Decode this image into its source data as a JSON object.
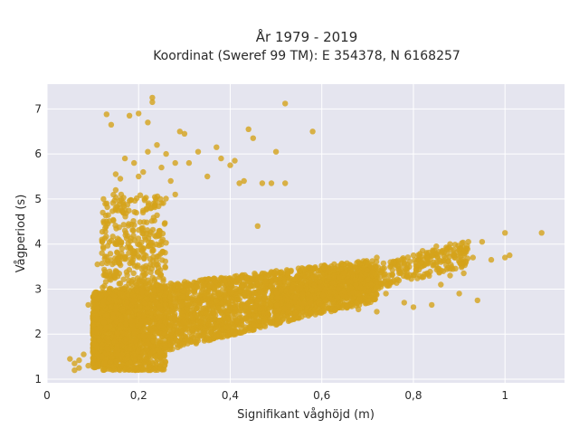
{
  "chart_data": {
    "type": "scatter",
    "title": "År 1979 - 2019",
    "subtitle": "Koordinat (Sweref 99 TM): E 354378, N 6168257",
    "xlabel": "Signifikant våghöjd (m)",
    "ylabel": "Vågperiod (s)",
    "xlim": [
      0,
      1.13
    ],
    "ylim": [
      0.92,
      7.55
    ],
    "x_ticks": [
      0,
      0.2,
      0.4,
      0.6,
      0.8,
      1
    ],
    "x_tick_labels": [
      "0",
      "0,2",
      "0,4",
      "0,6",
      "0,8",
      "1"
    ],
    "y_ticks": [
      1,
      2,
      3,
      4,
      5,
      6,
      7
    ],
    "y_tick_labels": [
      "1",
      "2",
      "3",
      "4",
      "5",
      "6",
      "7"
    ],
    "grid": true,
    "colors": {
      "marker": "#d4a21a",
      "plot_bg": "#e5e5ef",
      "grid": "#ffffff"
    },
    "series": [
      {
        "points": [
          [
            0.05,
            1.45
          ],
          [
            0.06,
            1.35
          ],
          [
            0.07,
            1.42
          ],
          [
            0.06,
            1.2
          ],
          [
            0.07,
            1.25
          ],
          [
            0.08,
            1.55
          ],
          [
            0.09,
            1.3
          ],
          [
            0.1,
            1.6
          ],
          [
            0.12,
            1.5
          ],
          [
            0.11,
            1.7
          ],
          [
            0.09,
            2.65
          ],
          [
            0.1,
            2.4
          ],
          [
            0.1,
            2.2
          ],
          [
            0.11,
            3.55
          ],
          [
            0.12,
            3.8
          ],
          [
            0.12,
            4.1
          ],
          [
            0.13,
            3.3
          ],
          [
            0.13,
            4.5
          ],
          [
            0.14,
            3.0
          ],
          [
            0.14,
            2.6
          ],
          [
            0.15,
            4.0
          ],
          [
            0.15,
            5.2
          ],
          [
            0.15,
            5.55
          ],
          [
            0.16,
            5.45
          ],
          [
            0.16,
            4.8
          ],
          [
            0.17,
            4.3
          ],
          [
            0.17,
            5.9
          ],
          [
            0.18,
            6.85
          ],
          [
            0.19,
            5.8
          ],
          [
            0.2,
            6.9
          ],
          [
            0.2,
            5.5
          ],
          [
            0.21,
            5.6
          ],
          [
            0.22,
            6.7
          ],
          [
            0.22,
            6.05
          ],
          [
            0.23,
            7.25
          ],
          [
            0.23,
            7.15
          ],
          [
            0.24,
            6.2
          ],
          [
            0.25,
            5.7
          ],
          [
            0.26,
            6.0
          ],
          [
            0.27,
            5.4
          ],
          [
            0.28,
            5.1
          ],
          [
            0.28,
            5.8
          ],
          [
            0.29,
            6.5
          ],
          [
            0.3,
            6.45
          ],
          [
            0.31,
            5.8
          ],
          [
            0.33,
            6.05
          ],
          [
            0.35,
            5.5
          ],
          [
            0.37,
            6.15
          ],
          [
            0.38,
            5.9
          ],
          [
            0.4,
            5.75
          ],
          [
            0.41,
            5.85
          ],
          [
            0.42,
            5.35
          ],
          [
            0.43,
            5.4
          ],
          [
            0.44,
            6.55
          ],
          [
            0.45,
            6.35
          ],
          [
            0.46,
            4.4
          ],
          [
            0.47,
            5.35
          ],
          [
            0.49,
            5.35
          ],
          [
            0.5,
            6.05
          ],
          [
            0.52,
            7.12
          ],
          [
            0.52,
            5.35
          ],
          [
            0.58,
            6.5
          ],
          [
            0.13,
            6.88
          ],
          [
            0.14,
            6.65
          ],
          [
            0.7,
            3.55
          ],
          [
            0.72,
            3.7
          ],
          [
            0.75,
            3.6
          ],
          [
            0.78,
            3.55
          ],
          [
            0.8,
            3.75
          ],
          [
            0.82,
            3.85
          ],
          [
            0.85,
            3.95
          ],
          [
            0.88,
            4.0
          ],
          [
            0.9,
            3.9
          ],
          [
            0.92,
            4.05
          ],
          [
            0.95,
            4.05
          ],
          [
            0.93,
            3.7
          ],
          [
            0.86,
            3.6
          ],
          [
            0.83,
            3.35
          ],
          [
            0.9,
            2.9
          ],
          [
            0.94,
            2.75
          ],
          [
            0.84,
            2.65
          ],
          [
            0.8,
            2.6
          ],
          [
            0.88,
            3.3
          ],
          [
            0.97,
            3.65
          ],
          [
            1.0,
            4.25
          ],
          [
            1.0,
            3.7
          ],
          [
            1.01,
            3.75
          ],
          [
            1.08,
            4.25
          ],
          [
            0.86,
            3.1
          ],
          [
            0.91,
            3.35
          ],
          [
            0.78,
            2.7
          ],
          [
            0.74,
            2.9
          ],
          [
            0.68,
            2.55
          ],
          [
            0.72,
            2.5
          ]
        ]
      }
    ]
  }
}
